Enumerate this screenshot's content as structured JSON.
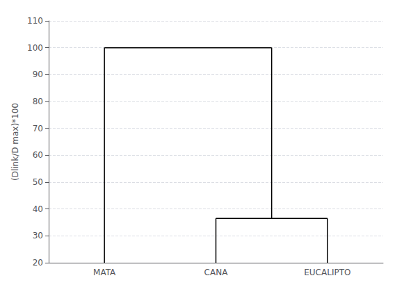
{
  "chart_data": {
    "type": "dendrogram",
    "categories": [
      "MATA",
      "CANA",
      "EUCALIPTO"
    ],
    "tree": {
      "height": 100.0,
      "children": [
        "MATA",
        {
          "height": 36.5,
          "children": [
            "CANA",
            "EUCALIPTO"
          ]
        }
      ]
    },
    "ylabel": "(Dlink/D max)*100",
    "ylim": [
      20,
      110
    ],
    "yticks": [
      20,
      30,
      40,
      50,
      60,
      70,
      80,
      90,
      100,
      110
    ],
    "grid": true,
    "color": "#000000"
  }
}
